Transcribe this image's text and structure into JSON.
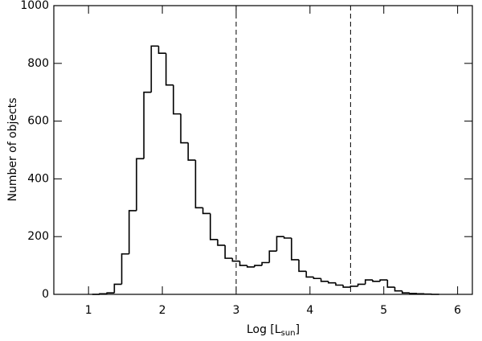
{
  "chart_data": {
    "type": "histogram",
    "x_label": [
      "Log [L",
      "sun",
      "]"
    ],
    "y_label": "Number of objects",
    "bins": [
      1.05,
      1.15,
      1.25,
      1.35,
      1.45,
      1.55,
      1.65,
      1.75,
      1.85,
      1.95,
      2.05,
      2.15,
      2.25,
      2.35,
      2.45,
      2.55,
      2.65,
      2.75,
      2.85,
      2.95,
      3.05,
      3.15,
      3.25,
      3.35,
      3.45,
      3.55,
      3.65,
      3.75,
      3.85,
      3.95,
      4.05,
      4.15,
      4.25,
      4.35,
      4.45,
      4.55,
      4.65,
      4.75,
      4.85,
      4.95,
      5.05,
      5.15,
      5.25,
      5.35,
      5.45,
      5.55,
      5.65,
      5.75
    ],
    "counts": [
      0,
      2,
      5,
      35,
      140,
      290,
      470,
      700,
      860,
      835,
      725,
      625,
      525,
      465,
      300,
      280,
      190,
      170,
      125,
      115,
      100,
      95,
      100,
      110,
      150,
      200,
      195,
      120,
      80,
      60,
      55,
      45,
      40,
      32,
      25,
      28,
      35,
      50,
      45,
      50,
      25,
      12,
      5,
      3,
      2,
      1,
      0
    ],
    "color": "#000000",
    "vlines": [
      3,
      4.55
    ],
    "xlim": [
      0.53,
      6.2
    ],
    "ylim": [
      0,
      1000
    ],
    "xticks": [
      1,
      2,
      3,
      4,
      5,
      6
    ],
    "yticks": [
      0,
      200,
      400,
      600,
      800,
      1000
    ]
  }
}
